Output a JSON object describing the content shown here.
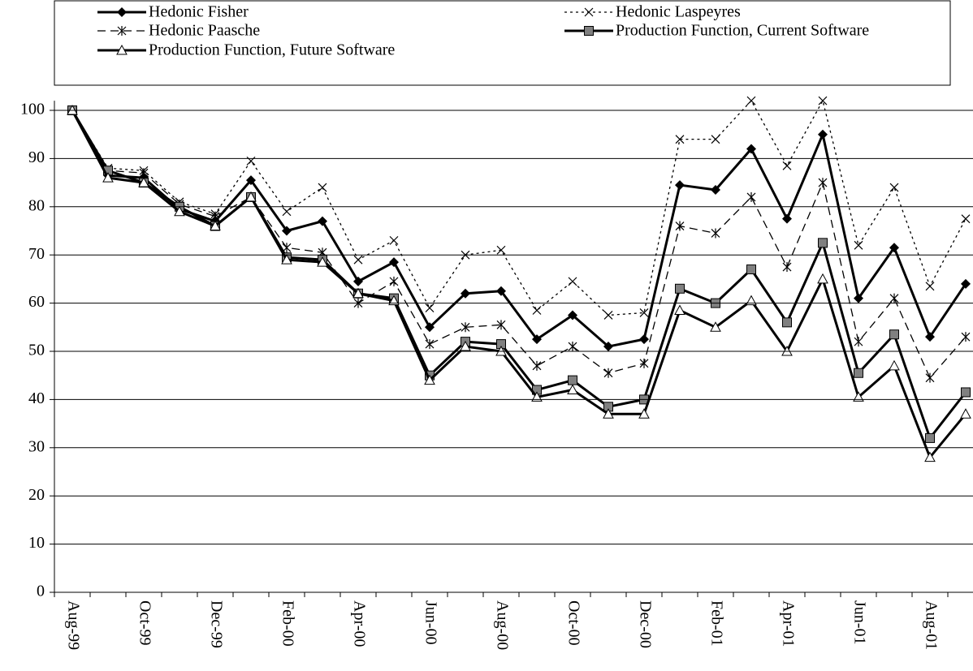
{
  "chart_data": {
    "type": "line",
    "categories": [
      "Aug-99",
      null,
      "Oct-99",
      null,
      "Dec-99",
      null,
      "Feb-00",
      null,
      "Apr-00",
      null,
      "Jun-00",
      null,
      "Aug-00",
      null,
      "Oct-00",
      null,
      "Dec-00",
      null,
      "Feb-01",
      null,
      "Apr-01",
      null,
      "Jun-01",
      null,
      "Aug-01",
      null
    ],
    "ylim": [
      0,
      102
    ],
    "yticks": [
      0,
      10,
      20,
      30,
      40,
      50,
      60,
      70,
      80,
      90,
      100
    ],
    "grid": true,
    "series": [
      {
        "name": "Hedonic Fisher",
        "color": "#000000",
        "marker": "diamond",
        "linestyle": "solid",
        "values": [
          100,
          86.5,
          86,
          79.5,
          77,
          85.5,
          75,
          77,
          64.5,
          68.5,
          55,
          62,
          62.5,
          52.5,
          57.5,
          51,
          52.5,
          84.5,
          83.5,
          92,
          77.5,
          95,
          61,
          71.5,
          53,
          64
        ]
      },
      {
        "name": "Hedonic Laspeyres",
        "color": "#000000",
        "marker": "x",
        "linestyle": "dotted",
        "values": [
          100,
          88,
          87.5,
          81,
          78.5,
          89.5,
          79,
          84,
          69,
          73,
          59,
          70,
          71,
          58.5,
          64.5,
          57.5,
          58,
          94,
          94,
          102,
          88.5,
          102,
          72,
          84,
          63.5,
          77.5
        ]
      },
      {
        "name": "Hedonic Paasche",
        "color": "#000000",
        "marker": "asterisk",
        "linestyle": "dashed",
        "values": [
          100,
          87.5,
          87,
          80.5,
          78,
          82,
          71.5,
          70.5,
          60,
          64.5,
          51.5,
          55,
          55.5,
          47,
          51,
          45.5,
          47.5,
          76,
          74.5,
          82,
          67.5,
          85,
          52,
          61,
          44.5,
          53
        ]
      },
      {
        "name": "Production Function, Current Software",
        "color": "#000000",
        "marker": "square",
        "linestyle": "solid",
        "values": [
          100,
          87.5,
          85,
          80,
          76,
          82,
          69.5,
          69,
          62,
          61,
          45,
          52,
          51.5,
          42,
          44,
          38.5,
          40,
          63,
          60,
          67,
          56,
          72.5,
          45.5,
          53.5,
          32,
          41.5
        ]
      },
      {
        "name": "Production Function, Future Software",
        "color": "#000000",
        "marker": "triangle",
        "linestyle": "solid",
        "values": [
          100,
          86,
          85,
          79,
          76,
          82,
          69,
          68.5,
          62,
          60.5,
          44,
          51,
          50,
          40.5,
          42,
          37,
          37,
          58.5,
          55,
          60.5,
          50,
          65,
          40.5,
          47,
          28,
          37
        ]
      }
    ]
  }
}
